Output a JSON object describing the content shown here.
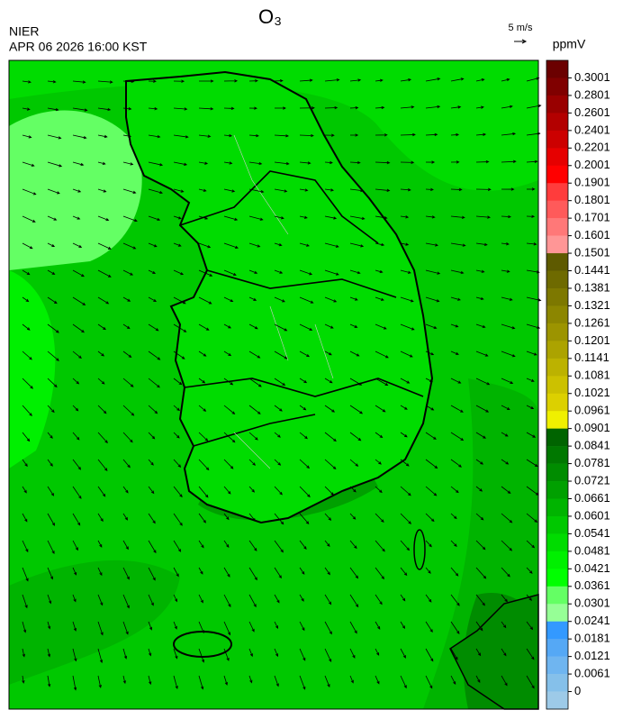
{
  "header": {
    "title": "O₃",
    "agency": "NIER",
    "datetime": "APR 06 2026 16:00 KST",
    "wind_scale": "5 m/s"
  },
  "colorbar": {
    "unit": "ppmV",
    "labels": [
      0.3001,
      0.2801,
      0.2601,
      0.2401,
      0.2201,
      0.2001,
      0.1901,
      0.1801,
      0.1701,
      0.1601,
      0.1501,
      0.1441,
      0.1381,
      0.1321,
      0.1261,
      0.1201,
      0.1141,
      0.1081,
      0.1021,
      0.0961,
      0.0901,
      0.0841,
      0.0781,
      0.0721,
      0.0661,
      0.0601,
      0.0541,
      0.0481,
      0.0421,
      0.0361,
      0.0301,
      0.0241,
      0.0181,
      0.0121,
      0.0061,
      0
    ],
    "colors": [
      "#6b0000",
      "#800000",
      "#990000",
      "#b30000",
      "#cc0000",
      "#e60000",
      "#ff0000",
      "#ff3c3c",
      "#ff5a5a",
      "#ff7878",
      "#ff9696",
      "#5e5a00",
      "#6e6a00",
      "#7d7800",
      "#8c8600",
      "#9c9400",
      "#aca300",
      "#bcb200",
      "#ccc100",
      "#dcd000",
      "#f0f000",
      "#006400",
      "#007800",
      "#008c00",
      "#00a000",
      "#00b400",
      "#00c800",
      "#00dc00",
      "#00f000",
      "#00ff00",
      "#64ff64",
      "#96ff96",
      "#3399ff",
      "#55a8f5",
      "#6fb5f0",
      "#85c0ea",
      "#9dcae8"
    ]
  }
}
